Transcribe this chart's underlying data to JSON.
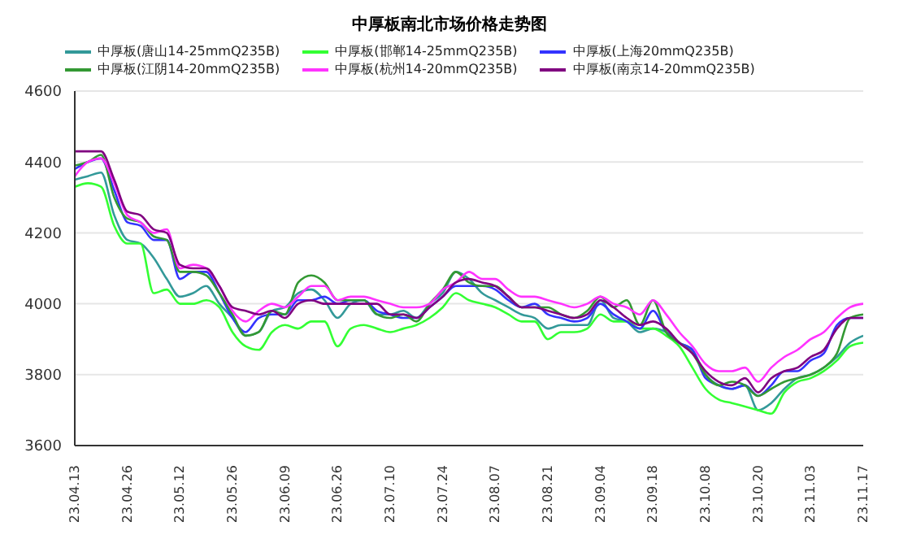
{
  "chart_data": {
    "type": "line",
    "title": "中厚板南北市场价格走势图",
    "categories": [
      "23.04.13",
      null,
      null,
      null,
      "23.04.26",
      null,
      null,
      null,
      "23.05.12",
      null,
      null,
      null,
      "23.05.26",
      null,
      null,
      null,
      "23.06.09",
      null,
      null,
      null,
      "23.06.26",
      null,
      null,
      null,
      "23.07.10",
      null,
      null,
      null,
      "23.07.24",
      null,
      null,
      null,
      "23.08.07",
      null,
      null,
      null,
      "23.08.21",
      null,
      null,
      null,
      "23.09.04",
      null,
      null,
      null,
      "23.09.18",
      null,
      null,
      null,
      "23.10.08",
      null,
      null,
      null,
      "23.10.20",
      null,
      null,
      null,
      "23.11.03",
      null,
      null,
      null,
      "23.11.17"
    ],
    "series": [
      {
        "name": "中厚板(唐山14-25mmQ235B)",
        "color": "#339999",
        "values": [
          4350,
          4360,
          4370,
          4250,
          4180,
          4170,
          4130,
          4070,
          4020,
          4030,
          4050,
          4000,
          3960,
          3910,
          3920,
          3980,
          3990,
          4030,
          4040,
          4010,
          3960,
          4000,
          4010,
          3970,
          3970,
          3980,
          3960,
          4000,
          4030,
          4090,
          4070,
          4030,
          4010,
          3990,
          3970,
          3960,
          3930,
          3940,
          3940,
          3940,
          4010,
          3960,
          3950,
          3920,
          3930,
          3920,
          3890,
          3870,
          3800,
          3770,
          3760,
          3770,
          3700,
          3720,
          3760,
          3790,
          3800,
          3820,
          3850,
          3890,
          3910
        ]
      },
      {
        "name": "中厚板(邯郸14-25mmQ235B)",
        "color": "#33ff33",
        "values": [
          4330,
          4340,
          4330,
          4220,
          4170,
          4170,
          4030,
          4040,
          4000,
          4000,
          4010,
          3990,
          3920,
          3880,
          3870,
          3920,
          3940,
          3930,
          3950,
          3950,
          3880,
          3930,
          3940,
          3930,
          3920,
          3930,
          3940,
          3960,
          3990,
          4030,
          4010,
          4000,
          3990,
          3970,
          3950,
          3950,
          3900,
          3920,
          3920,
          3930,
          3970,
          3950,
          3950,
          3930,
          3930,
          3910,
          3880,
          3820,
          3760,
          3730,
          3720,
          3710,
          3700,
          3690,
          3750,
          3780,
          3790,
          3810,
          3840,
          3880,
          3890
        ]
      },
      {
        "name": "中厚板(上海20mmQ235B)",
        "color": "#3333ff",
        "values": [
          4380,
          4400,
          4410,
          4320,
          4230,
          4220,
          4180,
          4180,
          4070,
          4090,
          4090,
          4030,
          3960,
          3920,
          3960,
          3970,
          3970,
          4010,
          4010,
          4020,
          4000,
          4010,
          4010,
          3980,
          3970,
          3960,
          3960,
          3990,
          4020,
          4050,
          4050,
          4050,
          4040,
          4010,
          3990,
          4000,
          3970,
          3960,
          3950,
          3960,
          4000,
          3970,
          3950,
          3930,
          3980,
          3920,
          3890,
          3870,
          3790,
          3770,
          3760,
          3770,
          3740,
          3770,
          3810,
          3810,
          3840,
          3860,
          3940,
          3960,
          3960
        ]
      },
      {
        "name": "中厚板(江阴14-20mmQ235B)",
        "color": "#339933",
        "values": [
          4390,
          4400,
          4420,
          4300,
          4240,
          4230,
          4190,
          4180,
          4090,
          4090,
          4080,
          4030,
          3970,
          3910,
          3920,
          3980,
          3970,
          4060,
          4080,
          4060,
          4010,
          4010,
          4010,
          3970,
          3960,
          3970,
          3950,
          4000,
          4040,
          4090,
          4060,
          4050,
          4050,
          4020,
          3990,
          3990,
          3990,
          3970,
          3960,
          3980,
          4020,
          3990,
          4010,
          3940,
          4010,
          3920,
          3890,
          3860,
          3800,
          3770,
          3780,
          3770,
          3740,
          3760,
          3780,
          3790,
          3800,
          3820,
          3860,
          3960,
          3970
        ]
      },
      {
        "name": "中厚板(杭州14-20mmQ235B)",
        "color": "#ff33ff",
        "values": [
          4360,
          4400,
          4410,
          4340,
          4250,
          4230,
          4200,
          4210,
          4100,
          4110,
          4100,
          4050,
          3980,
          3950,
          3980,
          4000,
          3990,
          4020,
          4050,
          4050,
          4010,
          4020,
          4020,
          4010,
          4000,
          3990,
          3990,
          4000,
          4040,
          4060,
          4090,
          4070,
          4070,
          4040,
          4020,
          4020,
          4010,
          4000,
          3990,
          4000,
          4020,
          4000,
          3990,
          3970,
          4010,
          3970,
          3920,
          3880,
          3830,
          3810,
          3810,
          3820,
          3780,
          3820,
          3850,
          3870,
          3900,
          3920,
          3960,
          3990,
          4000
        ]
      },
      {
        "name": "中厚板(南京14-20mmQ235B)",
        "color": "#800080",
        "values": [
          4430,
          4430,
          4430,
          4350,
          4260,
          4250,
          4210,
          4200,
          4110,
          4100,
          4100,
          4050,
          3990,
          3980,
          3970,
          3980,
          3960,
          4000,
          4010,
          4000,
          4000,
          4000,
          4000,
          4000,
          3970,
          3970,
          3960,
          3990,
          4020,
          4060,
          4070,
          4060,
          4050,
          4020,
          3990,
          3990,
          3980,
          3970,
          3960,
          3970,
          4010,
          3990,
          3960,
          3940,
          3950,
          3930,
          3890,
          3860,
          3810,
          3780,
          3770,
          3790,
          3750,
          3790,
          3810,
          3820,
          3850,
          3870,
          3930,
          3960,
          3960
        ]
      }
    ],
    "ylim": [
      3600,
      4600
    ],
    "yticks": [
      3600,
      3800,
      4000,
      4200,
      4400,
      4600
    ],
    "grid": "y",
    "legend": "top",
    "marker": "none",
    "line_style": "solid"
  }
}
